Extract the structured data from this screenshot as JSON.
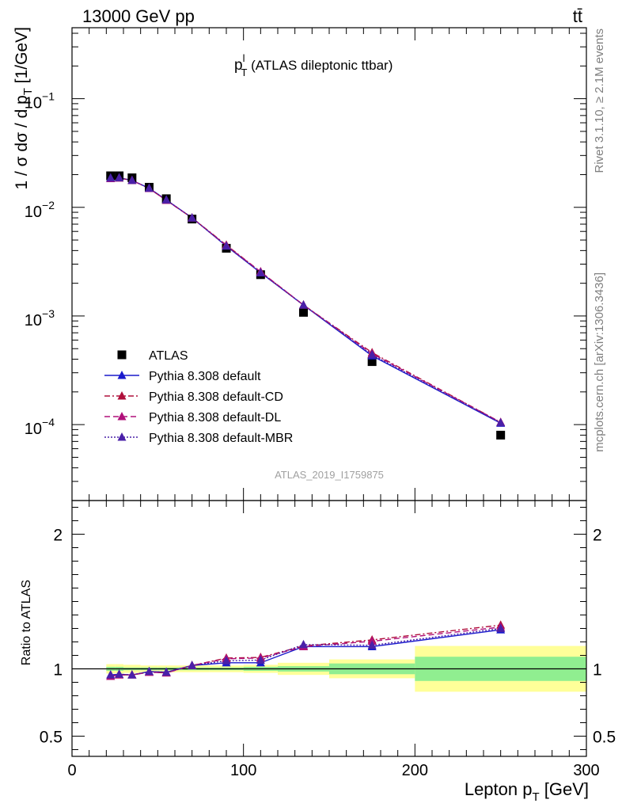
{
  "header": {
    "energy_label": "13000 GeV pp",
    "process_label": "tt̄"
  },
  "side_labels": {
    "rivet": "Rivet 3.1.10, ≥ 2.1M events",
    "mcplots": "mcplots.cern.ch [arXiv:1306.3436]"
  },
  "chart_data": [
    {
      "type": "scatter",
      "panel": "main",
      "title_main": "p",
      "title_sup": "l",
      "title_sub": "T",
      "title_rest": " (ATLAS dileptonic ttbar)",
      "watermark": "ATLAS_2019_I1759875",
      "ylabel_main": "1 / σ  dσ / d p",
      "ylabel_sub": "T",
      "ylabel_units": " [1/GeV]",
      "yscale": "log",
      "xlim": [
        0,
        300
      ],
      "ylim": [
        2e-05,
        0.45
      ],
      "y_ticks": [
        {
          "value": 0.1,
          "base": "10",
          "exp": "−1"
        },
        {
          "value": 0.01,
          "base": "10",
          "exp": "−2"
        },
        {
          "value": 0.001,
          "base": "10",
          "exp": "−3"
        },
        {
          "value": 0.0001,
          "base": "10",
          "exp": "−4"
        }
      ],
      "x": [
        22.5,
        27.5,
        35,
        45,
        55,
        70,
        90,
        110,
        135,
        175,
        250
      ],
      "series": [
        {
          "name": "ATLAS",
          "color": "#000000",
          "marker": "square",
          "line": "none",
          "values": [
            0.0195,
            0.0195,
            0.0187,
            0.0153,
            0.012,
            0.0078,
            0.0042,
            0.0024,
            0.00108,
            0.00038,
            8e-05
          ]
        },
        {
          "name": "Pythia 8.308 default",
          "color": "#1a1acc",
          "marker": "triangle",
          "line": "solid",
          "values": [
            0.0186,
            0.0187,
            0.0177,
            0.015,
            0.0117,
            0.008,
            0.0044,
            0.0025,
            0.00126,
            0.00043,
            0.000103
          ]
        },
        {
          "name": "Pythia 8.308 default-CD",
          "color": "#b0103c",
          "marker": "triangle",
          "line": "dashdot",
          "values": [
            0.0184,
            0.0186,
            0.0177,
            0.0149,
            0.0116,
            0.008,
            0.0045,
            0.00255,
            0.00126,
            0.00046,
            0.000105
          ]
        },
        {
          "name": "Pythia 8.308 default-DL",
          "color": "#b0107a",
          "marker": "triangle",
          "line": "dashed",
          "values": [
            0.0184,
            0.0186,
            0.0177,
            0.0149,
            0.0116,
            0.008,
            0.00445,
            0.00255,
            0.00126,
            0.00045,
            0.000105
          ]
        },
        {
          "name": "Pythia 8.308 default-MBR",
          "color": "#4a20a8",
          "marker": "triangle",
          "line": "dotted",
          "values": [
            0.0186,
            0.0187,
            0.0177,
            0.015,
            0.0117,
            0.008,
            0.0044,
            0.0025,
            0.00126,
            0.00044,
            0.000104
          ]
        }
      ],
      "legend_position": "lower-left"
    },
    {
      "type": "scatter",
      "panel": "ratio",
      "ylabel": "Ratio to ATLAS",
      "xlabel_main": "Lepton p",
      "xlabel_sub": "T",
      "xlabel_units": " [GeV]",
      "xlim": [
        0,
        300
      ],
      "ylim": [
        0.35,
        2.25
      ],
      "x_ticks": [
        0,
        100,
        200,
        300
      ],
      "y_ticks": [
        0.5,
        1,
        2
      ],
      "ratio_y_ticks_right": [
        0.5,
        1,
        2
      ],
      "reference_line": 1,
      "uncertainty_bands": [
        {
          "x_low": 20,
          "x_high": 25,
          "stat_low": 0.985,
          "stat_high": 1.015,
          "total_low": 0.965,
          "total_high": 1.035
        },
        {
          "x_low": 25,
          "x_high": 30,
          "stat_low": 0.985,
          "stat_high": 1.015,
          "total_low": 0.965,
          "total_high": 1.035
        },
        {
          "x_low": 30,
          "x_high": 40,
          "stat_low": 0.99,
          "stat_high": 1.01,
          "total_low": 0.97,
          "total_high": 1.03
        },
        {
          "x_low": 40,
          "x_high": 50,
          "stat_low": 0.99,
          "stat_high": 1.01,
          "total_low": 0.975,
          "total_high": 1.025
        },
        {
          "x_low": 50,
          "x_high": 60,
          "stat_low": 0.99,
          "stat_high": 1.01,
          "total_low": 0.975,
          "total_high": 1.025
        },
        {
          "x_low": 60,
          "x_high": 80,
          "stat_low": 0.99,
          "stat_high": 1.01,
          "total_low": 0.975,
          "total_high": 1.025
        },
        {
          "x_low": 80,
          "x_high": 100,
          "stat_low": 0.99,
          "stat_high": 1.01,
          "total_low": 0.975,
          "total_high": 1.025
        },
        {
          "x_low": 100,
          "x_high": 120,
          "stat_low": 0.985,
          "stat_high": 1.015,
          "total_low": 0.97,
          "total_high": 1.03
        },
        {
          "x_low": 120,
          "x_high": 150,
          "stat_low": 0.98,
          "stat_high": 1.02,
          "total_low": 0.955,
          "total_high": 1.045
        },
        {
          "x_low": 150,
          "x_high": 200,
          "stat_low": 0.96,
          "stat_high": 1.04,
          "total_low": 0.93,
          "total_high": 1.07
        },
        {
          "x_low": 200,
          "x_high": 300,
          "stat_low": 0.91,
          "stat_high": 1.09,
          "total_low": 0.83,
          "total_high": 1.17
        }
      ],
      "band_colors": {
        "stat": "#90ee90",
        "total": "#ffff99"
      },
      "x": [
        22.5,
        27.5,
        35,
        45,
        55,
        70,
        90,
        110,
        135,
        175,
        250
      ],
      "series": [
        {
          "name": "Pythia 8.308 default",
          "color": "#1a1acc",
          "line": "solid",
          "values": [
            0.955,
            0.96,
            0.955,
            0.98,
            0.975,
            1.025,
            1.045,
            1.045,
            1.165,
            1.165,
            1.29
          ]
        },
        {
          "name": "Pythia 8.308 default-CD",
          "color": "#b0103c",
          "line": "dashdot",
          "values": [
            0.945,
            0.955,
            0.955,
            0.975,
            0.97,
            1.025,
            1.08,
            1.085,
            1.17,
            1.215,
            1.325
          ]
        },
        {
          "name": "Pythia 8.308 default-DL",
          "color": "#b0107a",
          "line": "dashed",
          "values": [
            0.945,
            0.955,
            0.955,
            0.975,
            0.97,
            1.025,
            1.075,
            1.08,
            1.165,
            1.205,
            1.31
          ]
        },
        {
          "name": "Pythia 8.308 default-MBR",
          "color": "#4a20a8",
          "line": "dotted",
          "values": [
            0.955,
            0.96,
            0.955,
            0.98,
            0.975,
            1.025,
            1.06,
            1.065,
            1.18,
            1.175,
            1.3
          ]
        }
      ]
    }
  ]
}
